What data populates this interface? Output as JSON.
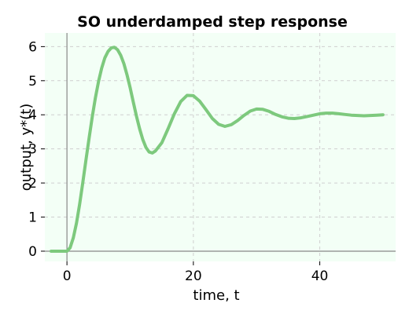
{
  "chart_data": {
    "type": "line",
    "title": "SO underdamped step response",
    "xlabel": "time, t",
    "ylabel": "output, y*(t)",
    "xlim": [
      -3.5,
      52
    ],
    "ylim": [
      -0.3,
      6.4
    ],
    "xticks": [
      0,
      20,
      40
    ],
    "yticks": [
      0,
      1,
      2,
      3,
      4,
      5,
      6
    ],
    "grid": true,
    "background_color": "#f3fff6",
    "line_color": "#7dc97d",
    "series": [
      {
        "x": [
          -2.5,
          0,
          0.5,
          1,
          1.5,
          2,
          2.5,
          3,
          3.5,
          4,
          4.5,
          5,
          5.5,
          6,
          6.5,
          7,
          7.5,
          8,
          8.5,
          9,
          9.5,
          10,
          10.5,
          11,
          11.5,
          12,
          12.5,
          13,
          13.5,
          14,
          15,
          16,
          17,
          18,
          19,
          20,
          21,
          22,
          23,
          24,
          25,
          26,
          27,
          28,
          29,
          30,
          31,
          32,
          33,
          34,
          35,
          36,
          37,
          38,
          39,
          40,
          41,
          42,
          43,
          44,
          45,
          46,
          47,
          48,
          49,
          50
        ],
        "y": [
          0,
          0,
          0.1,
          0.39,
          0.82,
          1.37,
          2.0,
          2.66,
          3.32,
          3.94,
          4.5,
          4.98,
          5.37,
          5.67,
          5.86,
          5.96,
          5.98,
          5.91,
          5.75,
          5.5,
          5.17,
          4.79,
          4.37,
          3.96,
          3.59,
          3.27,
          3.04,
          2.91,
          2.88,
          2.94,
          3.18,
          3.59,
          4.03,
          4.39,
          4.57,
          4.56,
          4.4,
          4.15,
          3.89,
          3.72,
          3.66,
          3.71,
          3.83,
          3.98,
          4.11,
          4.17,
          4.16,
          4.1,
          4.01,
          3.94,
          3.9,
          3.89,
          3.91,
          3.95,
          3.99,
          4.03,
          4.05,
          4.05,
          4.03,
          4.01,
          3.99,
          3.98,
          3.97,
          3.98,
          3.99,
          4.0
        ]
      }
    ]
  }
}
